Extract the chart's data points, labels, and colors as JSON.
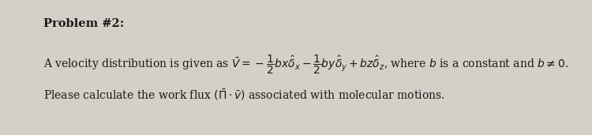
{
  "background_color": "#d4d0c8",
  "title_text": "Problem #2:",
  "title_fontsize": 10.5,
  "title_fontweight": "bold",
  "line1_fontsize": 10.0,
  "line2_fontsize": 10.0,
  "text_color": "#1a1a1a"
}
